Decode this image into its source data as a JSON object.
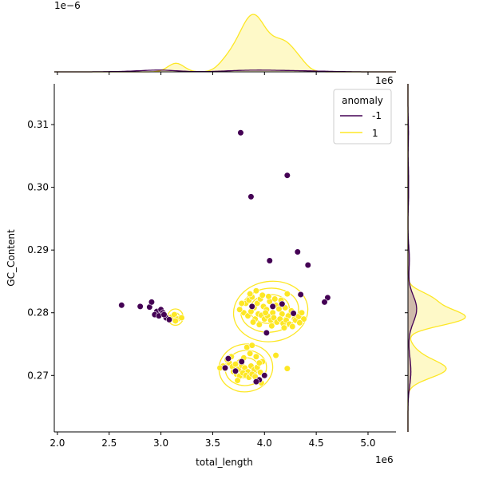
{
  "chart_data": {
    "type": "scatter",
    "xlabel": "total_length",
    "ylabel": "GC_Content",
    "x_offset_text": "1e6",
    "y_offset_text_right": "1e6",
    "top_offset_text": "1e−6",
    "xlim": [
      1.97,
      5.27
    ],
    "ylim": [
      0.261,
      0.3165
    ],
    "xticks": [
      2.0,
      2.5,
      3.0,
      3.5,
      4.0,
      4.5,
      5.0
    ],
    "xtick_labels": [
      "2.0",
      "2.5",
      "3.0",
      "3.5",
      "4.0",
      "4.5",
      "5.0"
    ],
    "yticks": [
      0.27,
      0.28,
      0.29,
      0.3,
      0.31
    ],
    "ytick_labels": [
      "0.27",
      "0.28",
      "0.29",
      "0.30",
      "0.31"
    ],
    "colors": {
      "anomaly_-1": "#440154",
      "anomaly_1": "#fde725"
    },
    "legend": {
      "title": "anomaly",
      "placement": "top-right",
      "entries": [
        {
          "label": "-1",
          "color": "#440154"
        },
        {
          "label": "1",
          "color": "#fde725"
        }
      ]
    },
    "series": [
      {
        "name": "-1",
        "color": "#440154",
        "points": [
          [
            3.77,
            0.3087
          ],
          [
            4.22,
            0.3019
          ],
          [
            3.87,
            0.2985
          ],
          [
            4.32,
            0.2897
          ],
          [
            4.42,
            0.2876
          ],
          [
            4.05,
            0.2883
          ],
          [
            4.35,
            0.2829
          ],
          [
            4.61,
            0.2824
          ],
          [
            4.58,
            0.2817
          ],
          [
            2.62,
            0.2812
          ],
          [
            2.8,
            0.281
          ],
          [
            2.89,
            0.2809
          ],
          [
            2.91,
            0.2817
          ],
          [
            2.96,
            0.2802
          ],
          [
            3.0,
            0.2805
          ],
          [
            2.94,
            0.2797
          ],
          [
            3.02,
            0.28
          ],
          [
            3.05,
            0.2792
          ],
          [
            3.08,
            0.2789
          ],
          [
            2.98,
            0.2795
          ],
          [
            3.03,
            0.2797
          ],
          [
            4.02,
            0.2768
          ],
          [
            3.65,
            0.2727
          ],
          [
            3.78,
            0.2722
          ],
          [
            4.0,
            0.27
          ],
          [
            3.95,
            0.2693
          ],
          [
            3.92,
            0.269
          ],
          [
            4.08,
            0.281
          ],
          [
            4.17,
            0.2814
          ],
          [
            4.28,
            0.2799
          ],
          [
            3.88,
            0.281
          ],
          [
            3.62,
            0.2712
          ],
          [
            3.72,
            0.2707
          ]
        ]
      },
      {
        "name": "1",
        "color": "#fde725",
        "points": [
          [
            3.82,
            0.2815
          ],
          [
            3.85,
            0.282
          ],
          [
            3.88,
            0.2825
          ],
          [
            3.9,
            0.2808
          ],
          [
            3.93,
            0.2815
          ],
          [
            3.96,
            0.2822
          ],
          [
            3.99,
            0.281
          ],
          [
            4.02,
            0.2805
          ],
          [
            4.05,
            0.2818
          ],
          [
            4.08,
            0.28
          ],
          [
            4.11,
            0.2812
          ],
          [
            4.14,
            0.2806
          ],
          [
            4.17,
            0.2798
          ],
          [
            4.2,
            0.2808
          ],
          [
            4.23,
            0.2795
          ],
          [
            4.26,
            0.2803
          ],
          [
            4.29,
            0.279
          ],
          [
            3.8,
            0.28
          ],
          [
            3.84,
            0.2795
          ],
          [
            3.87,
            0.2802
          ],
          [
            3.91,
            0.279
          ],
          [
            3.94,
            0.2798
          ],
          [
            3.97,
            0.2796
          ],
          [
            4.0,
            0.279
          ],
          [
            4.03,
            0.2795
          ],
          [
            4.06,
            0.2788
          ],
          [
            4.09,
            0.2792
          ],
          [
            4.12,
            0.2785
          ],
          [
            4.15,
            0.279
          ],
          [
            4.18,
            0.2783
          ],
          [
            4.21,
            0.2788
          ],
          [
            4.24,
            0.2782
          ],
          [
            4.3,
            0.2788
          ],
          [
            4.33,
            0.2794
          ],
          [
            4.36,
            0.28
          ],
          [
            4.38,
            0.279
          ],
          [
            3.86,
            0.283
          ],
          [
            3.92,
            0.2835
          ],
          [
            3.98,
            0.2828
          ],
          [
            4.04,
            0.2826
          ],
          [
            4.1,
            0.2822
          ],
          [
            4.16,
            0.282
          ],
          [
            4.22,
            0.283
          ],
          [
            3.78,
            0.2815
          ],
          [
            3.76,
            0.2805
          ],
          [
            3.95,
            0.2781
          ],
          [
            4.07,
            0.2779
          ],
          [
            4.19,
            0.2776
          ],
          [
            4.27,
            0.2778
          ],
          [
            4.34,
            0.2784
          ],
          [
            3.89,
            0.2785
          ],
          [
            4.01,
            0.28
          ],
          [
            3.66,
            0.272
          ],
          [
            3.69,
            0.2714
          ],
          [
            3.72,
            0.2718
          ],
          [
            3.75,
            0.271
          ],
          [
            3.78,
            0.2716
          ],
          [
            3.81,
            0.2712
          ],
          [
            3.84,
            0.2706
          ],
          [
            3.87,
            0.2715
          ],
          [
            3.9,
            0.2709
          ],
          [
            3.93,
            0.2713
          ],
          [
            3.96,
            0.2705
          ],
          [
            3.7,
            0.2706
          ],
          [
            3.73,
            0.2702
          ],
          [
            3.76,
            0.2699
          ],
          [
            3.79,
            0.2704
          ],
          [
            3.82,
            0.27
          ],
          [
            3.85,
            0.2697
          ],
          [
            3.88,
            0.2702
          ],
          [
            3.91,
            0.2698
          ],
          [
            3.62,
            0.2711
          ],
          [
            3.6,
            0.2715
          ],
          [
            3.64,
            0.2725
          ],
          [
            3.8,
            0.2728
          ],
          [
            3.86,
            0.2735
          ],
          [
            3.92,
            0.273
          ],
          [
            3.98,
            0.2722
          ],
          [
            3.83,
            0.2745
          ],
          [
            3.88,
            0.2748
          ],
          [
            4.11,
            0.2732
          ],
          [
            3.74,
            0.2692
          ],
          [
            3.97,
            0.2688
          ],
          [
            4.22,
            0.2711
          ],
          [
            3.57,
            0.2712
          ],
          [
            3.68,
            0.273
          ],
          [
            3.95,
            0.272
          ],
          [
            3.1,
            0.2793
          ],
          [
            3.13,
            0.2797
          ],
          [
            3.16,
            0.279
          ],
          [
            3.2,
            0.2792
          ],
          [
            3.14,
            0.2787
          ]
        ]
      }
    ]
  }
}
